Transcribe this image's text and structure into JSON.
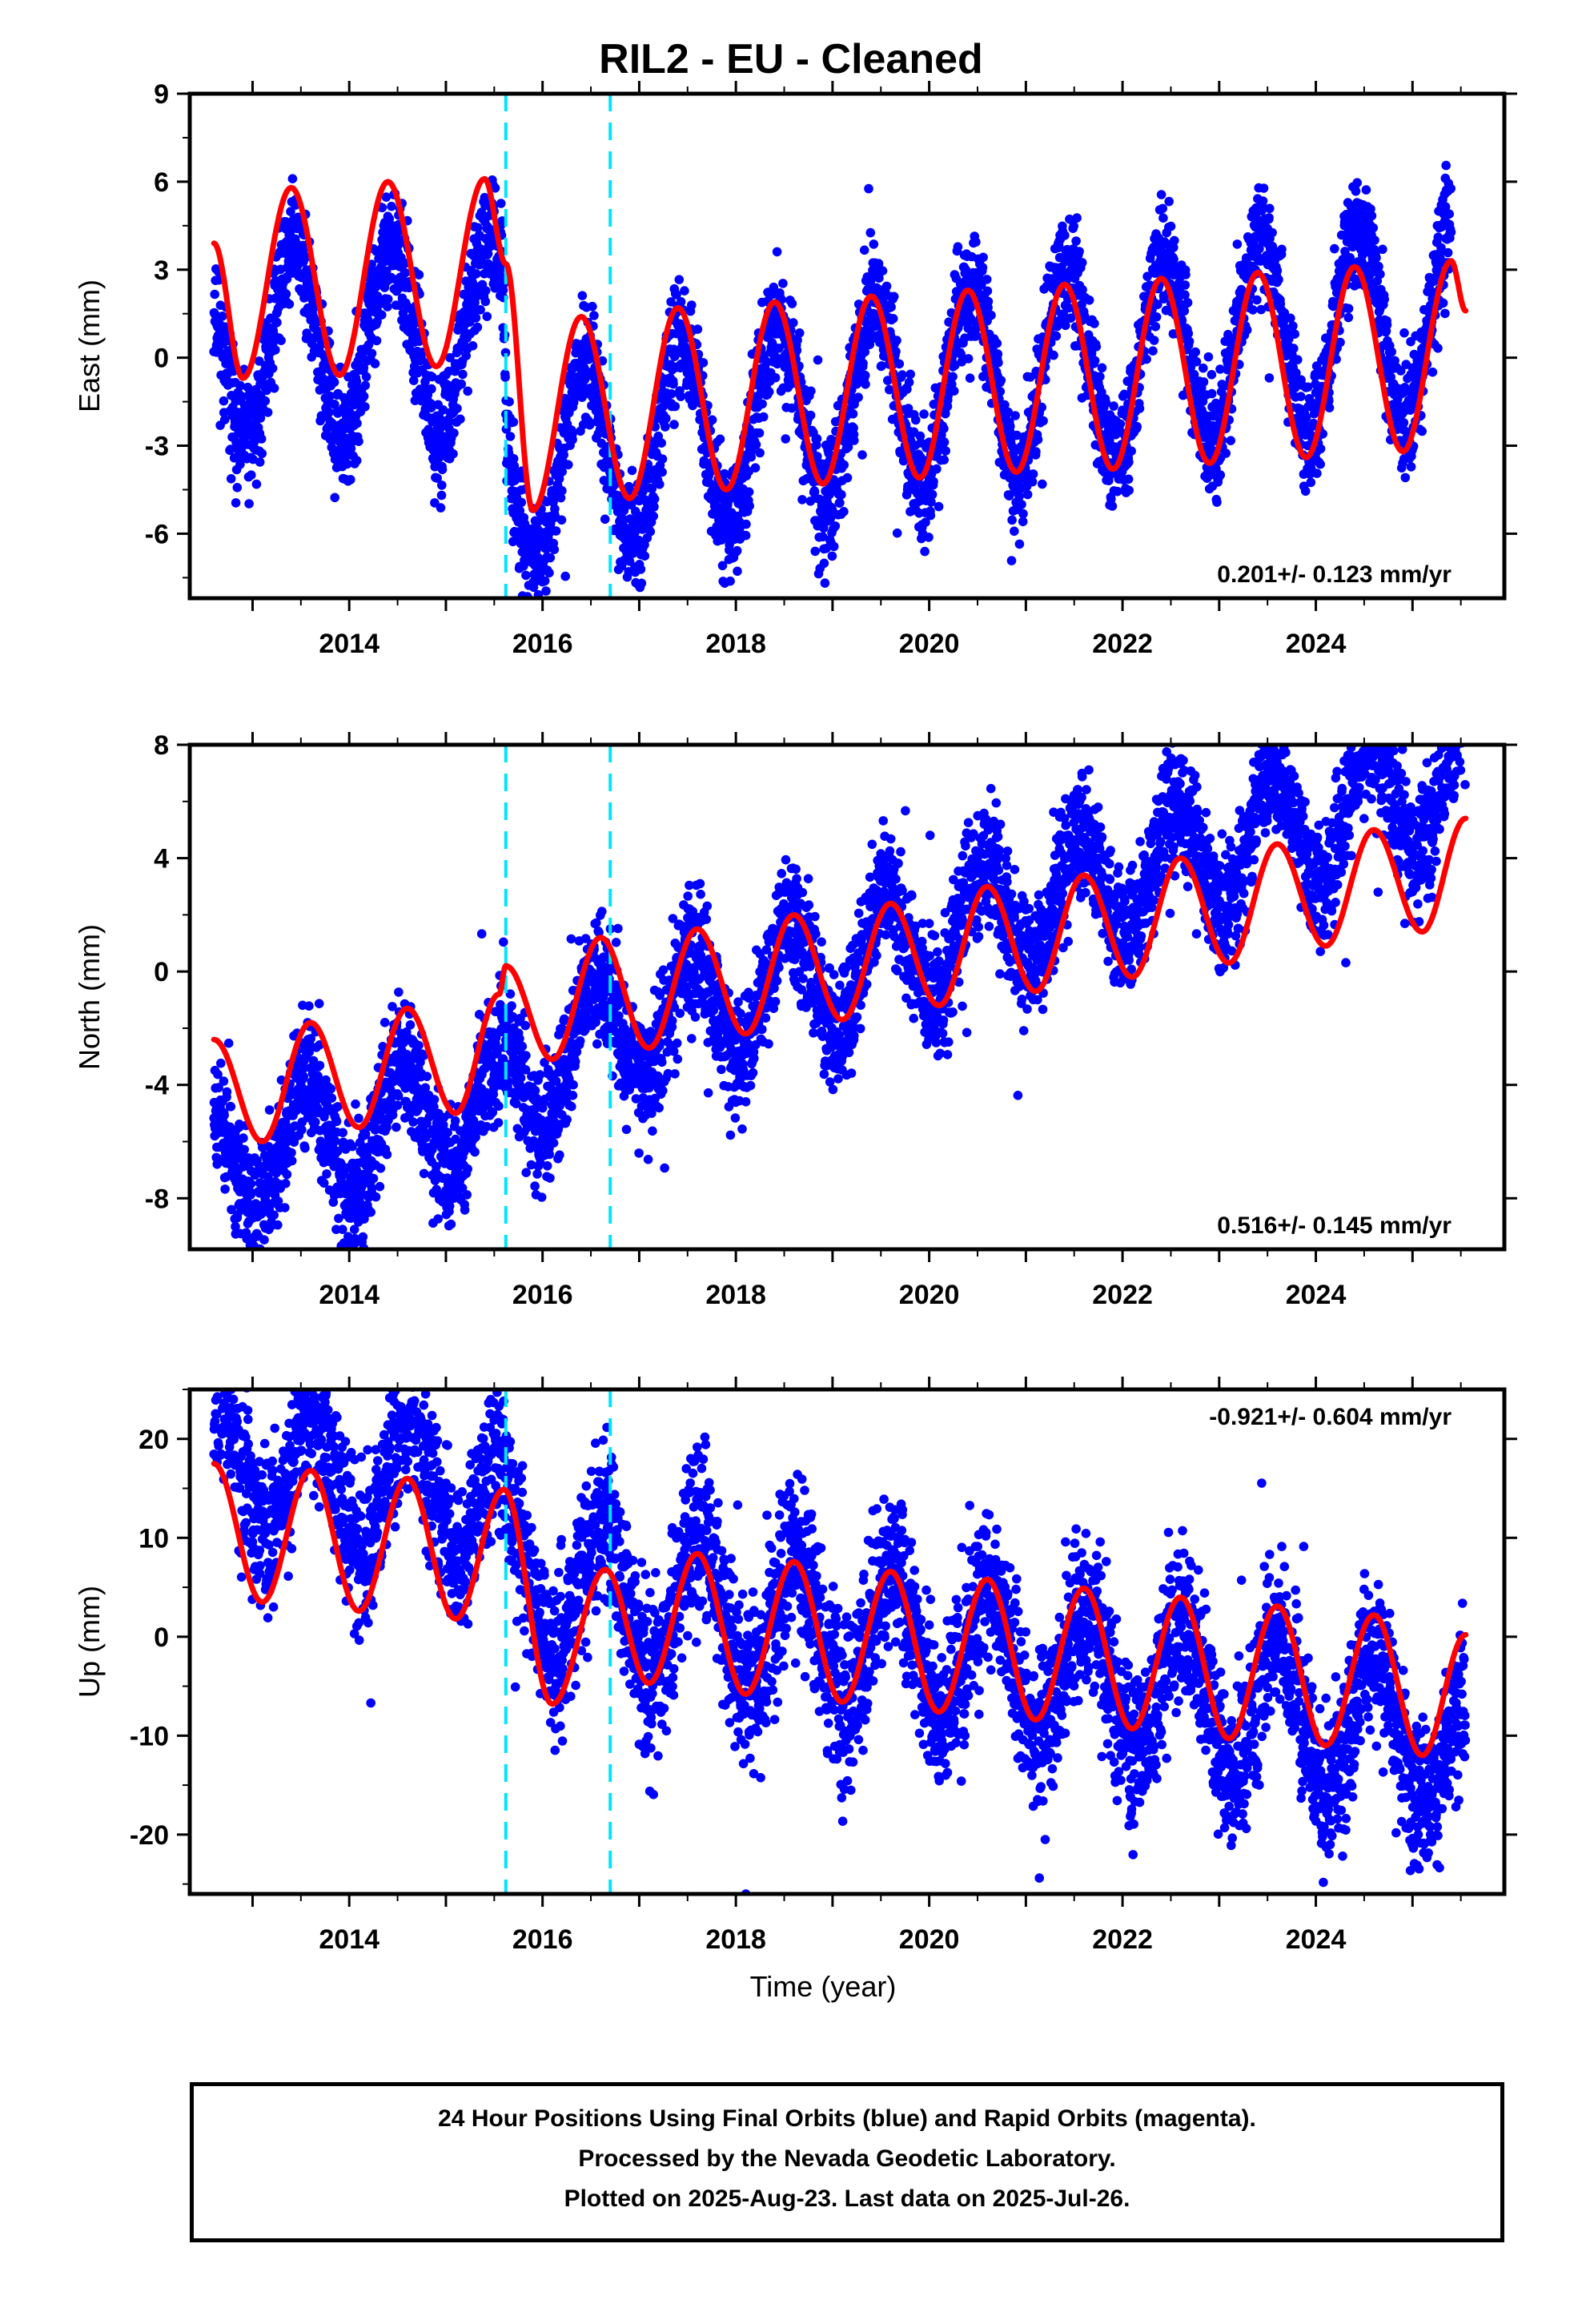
{
  "title": "RIL2  - EU - Cleaned",
  "colors": {
    "dots": "#0000ff",
    "fit": "#ff0000",
    "offsets": "#00e5ff"
  },
  "chart_data": [
    {
      "type": "scatter",
      "ylabel": "East (mm)",
      "xlabel": "",
      "xlim": [
        2012.35,
        2025.95
      ],
      "ylim": [
        -8.2,
        9.0
      ],
      "yticks": [
        -6,
        -3,
        0,
        3,
        6,
        9
      ],
      "xticks": [
        2014,
        2016,
        2018,
        2020,
        2022,
        2024
      ],
      "offsets": [
        2015.62,
        2016.7
      ],
      "rate_label": "0.201+/- 0.123 mm/yr",
      "rate_pos": "bottom-right",
      "model": {
        "rate": 0.201,
        "amp": 3.3,
        "peak_phase": 0.43,
        "noise": 1.0,
        "seed": 11,
        "anchors": [
          [
            2012.6,
            1.7
          ],
          [
            2015.6,
            1.4
          ],
          [
            2015.63,
            -3.3
          ],
          [
            2020.0,
            -1.2
          ],
          [
            2025.55,
            0.2
          ]
        ]
      },
      "series": [
        {
          "name": "Final Orbits",
          "values": [
            [
              2012.6,
              3.9
            ],
            [
              2012.9,
              -0.7
            ],
            [
              2013.4,
              5.8
            ],
            [
              2013.9,
              -0.6
            ],
            [
              2014.4,
              6.0
            ],
            [
              2014.9,
              -0.3
            ],
            [
              2015.4,
              6.1
            ],
            [
              2015.9,
              -5.2
            ],
            [
              2016.4,
              1.4
            ],
            [
              2016.9,
              -4.8
            ],
            [
              2017.4,
              1.7
            ],
            [
              2017.9,
              -4.5
            ],
            [
              2018.4,
              1.9
            ],
            [
              2018.9,
              -4.3
            ],
            [
              2019.4,
              2.1
            ],
            [
              2019.9,
              -4.1
            ],
            [
              2020.4,
              2.3
            ],
            [
              2020.9,
              -3.9
            ],
            [
              2021.4,
              2.5
            ],
            [
              2021.9,
              -3.8
            ],
            [
              2022.4,
              2.7
            ],
            [
              2022.9,
              -3.6
            ],
            [
              2023.4,
              2.9
            ],
            [
              2023.9,
              -3.4
            ],
            [
              2024.4,
              3.1
            ],
            [
              2024.9,
              -3.2
            ],
            [
              2025.4,
              3.3
            ]
          ]
        },
        {
          "name": "Fit",
          "values": [
            [
              2012.6,
              3.9
            ],
            [
              2012.9,
              -0.7
            ],
            [
              2013.4,
              5.8
            ],
            [
              2013.9,
              -0.6
            ],
            [
              2014.4,
              6.0
            ],
            [
              2014.9,
              -0.3
            ],
            [
              2015.4,
              6.1
            ],
            [
              2015.62,
              3.2
            ],
            [
              2015.9,
              -5.2
            ],
            [
              2016.4,
              1.4
            ],
            [
              2016.9,
              -4.8
            ],
            [
              2017.4,
              1.7
            ],
            [
              2017.9,
              -4.5
            ],
            [
              2018.4,
              1.9
            ],
            [
              2018.9,
              -4.3
            ],
            [
              2019.4,
              2.1
            ],
            [
              2019.9,
              -4.1
            ],
            [
              2020.4,
              2.3
            ],
            [
              2020.9,
              -3.9
            ],
            [
              2021.4,
              2.5
            ],
            [
              2021.9,
              -3.8
            ],
            [
              2022.4,
              2.7
            ],
            [
              2022.9,
              -3.6
            ],
            [
              2023.4,
              2.9
            ],
            [
              2023.9,
              -3.4
            ],
            [
              2024.4,
              3.1
            ],
            [
              2024.9,
              -3.2
            ],
            [
              2025.4,
              3.3
            ],
            [
              2025.55,
              1.6
            ]
          ]
        }
      ]
    },
    {
      "type": "scatter",
      "ylabel": "North (mm)",
      "xlabel": "",
      "xlim": [
        2012.35,
        2025.95
      ],
      "ylim": [
        -9.8,
        8.0
      ],
      "yticks": [
        -8,
        -4,
        0,
        4,
        8
      ],
      "xticks": [
        2014,
        2016,
        2018,
        2020,
        2022,
        2024
      ],
      "offsets": [
        2015.62,
        2016.7
      ],
      "rate_label": "0.516+/- 0.145 mm/yr",
      "rate_pos": "bottom-right",
      "model": {
        "rate": 0.516,
        "amp": 2.1,
        "peak_phase": 0.55,
        "noise": 1.1,
        "seed": 23,
        "anchors": [
          [
            2012.6,
            -3.3
          ],
          [
            2015.55,
            -2.9
          ],
          [
            2016.5,
            -0.9
          ],
          [
            2019.0,
            0.0
          ],
          [
            2022.0,
            1.8
          ],
          [
            2025.55,
            3.4
          ]
        ]
      },
      "series": [
        {
          "name": "Final Orbits",
          "values": [
            [
              2012.6,
              -2.4
            ],
            [
              2013.1,
              -6.0
            ],
            [
              2013.6,
              -1.8
            ],
            [
              2014.1,
              -5.5
            ],
            [
              2014.6,
              -1.3
            ],
            [
              2015.1,
              -5.0
            ],
            [
              2015.55,
              -0.8
            ],
            [
              2016.1,
              -3.1
            ],
            [
              2016.6,
              1.2
            ],
            [
              2017.1,
              -2.7
            ],
            [
              2017.6,
              1.5
            ],
            [
              2018.1,
              -2.2
            ],
            [
              2018.6,
              2.0
            ],
            [
              2019.1,
              -1.7
            ],
            [
              2019.6,
              2.4
            ],
            [
              2020.1,
              -1.2
            ],
            [
              2020.6,
              3.0
            ],
            [
              2021.1,
              -0.7
            ],
            [
              2021.6,
              3.4
            ],
            [
              2022.1,
              -0.2
            ],
            [
              2022.6,
              4.0
            ],
            [
              2023.1,
              0.3
            ],
            [
              2023.6,
              4.5
            ],
            [
              2024.1,
              0.9
            ],
            [
              2024.6,
              5.0
            ],
            [
              2025.1,
              1.4
            ],
            [
              2025.55,
              5.4
            ]
          ]
        },
        {
          "name": "Fit",
          "values": [
            [
              2012.6,
              -2.4
            ],
            [
              2013.1,
              -6.0
            ],
            [
              2013.6,
              -1.8
            ],
            [
              2014.1,
              -5.5
            ],
            [
              2014.6,
              -1.3
            ],
            [
              2015.1,
              -5.0
            ],
            [
              2015.55,
              -0.8
            ],
            [
              2015.62,
              0.2
            ],
            [
              2016.1,
              -3.1
            ],
            [
              2016.6,
              1.2
            ],
            [
              2017.1,
              -2.7
            ],
            [
              2017.6,
              1.5
            ],
            [
              2018.1,
              -2.2
            ],
            [
              2018.6,
              2.0
            ],
            [
              2019.1,
              -1.7
            ],
            [
              2019.6,
              2.4
            ],
            [
              2020.1,
              -1.2
            ],
            [
              2020.6,
              3.0
            ],
            [
              2021.1,
              -0.7
            ],
            [
              2021.6,
              3.4
            ],
            [
              2022.1,
              -0.2
            ],
            [
              2022.6,
              4.0
            ],
            [
              2023.1,
              0.3
            ],
            [
              2023.6,
              4.5
            ],
            [
              2024.1,
              0.9
            ],
            [
              2024.6,
              5.0
            ],
            [
              2025.1,
              1.4
            ],
            [
              2025.55,
              5.4
            ]
          ]
        }
      ]
    },
    {
      "type": "scatter",
      "ylabel": "Up (mm)",
      "xlabel": "Time (year)",
      "xlim": [
        2012.35,
        2025.95
      ],
      "ylim": [
        -26.0,
        25.0
      ],
      "yticks": [
        -20,
        -10,
        0,
        10,
        20
      ],
      "xticks": [
        2014,
        2016,
        2018,
        2020,
        2022,
        2024
      ],
      "offsets": [
        2015.62,
        2016.7
      ],
      "rate_label": "-0.921+/- 0.604 mm/yr",
      "rate_pos": "top-right",
      "model": {
        "rate": -0.921,
        "amp": 7.0,
        "peak_phase": 0.62,
        "noise": 4.0,
        "seed": 37,
        "anchors": [
          [
            2012.6,
            11.9
          ],
          [
            2015.6,
            11.0
          ],
          [
            2015.63,
            3.2
          ],
          [
            2016.7,
            2.2
          ],
          [
            2016.72,
            2.2
          ],
          [
            2020.0,
            0.0
          ],
          [
            2025.55,
            -5.0
          ]
        ]
      },
      "series": [
        {
          "name": "Final Orbits",
          "values": [
            [
              2012.6,
              17.5
            ],
            [
              2013.1,
              3.5
            ],
            [
              2013.6,
              16.8
            ],
            [
              2014.1,
              2.6
            ],
            [
              2014.6,
              16.0
            ],
            [
              2015.1,
              1.8
            ],
            [
              2015.6,
              14.9
            ],
            [
              2016.1,
              -6.8
            ],
            [
              2016.65,
              6.8
            ],
            [
              2017.1,
              -4.7
            ],
            [
              2017.6,
              8.4
            ],
            [
              2018.1,
              -5.8
            ],
            [
              2018.6,
              7.6
            ],
            [
              2019.1,
              -6.6
            ],
            [
              2019.6,
              6.6
            ],
            [
              2020.1,
              -7.6
            ],
            [
              2020.6,
              5.8
            ],
            [
              2021.1,
              -8.4
            ],
            [
              2021.6,
              4.9
            ],
            [
              2022.1,
              -9.3
            ],
            [
              2022.6,
              4.0
            ],
            [
              2023.1,
              -10.3
            ],
            [
              2023.6,
              3.1
            ],
            [
              2024.1,
              -11.0
            ],
            [
              2024.6,
              2.2
            ],
            [
              2025.1,
              -12.0
            ],
            [
              2025.55,
              0.2
            ]
          ]
        },
        {
          "name": "Fit",
          "values": [
            [
              2012.6,
              17.5
            ],
            [
              2013.1,
              3.5
            ],
            [
              2013.6,
              16.8
            ],
            [
              2014.1,
              2.6
            ],
            [
              2014.6,
              16.0
            ],
            [
              2015.1,
              1.8
            ],
            [
              2015.6,
              14.9
            ],
            [
              2016.1,
              -6.8
            ],
            [
              2016.65,
              6.8
            ],
            [
              2017.1,
              -4.7
            ],
            [
              2017.6,
              8.4
            ],
            [
              2018.1,
              -5.8
            ],
            [
              2018.6,
              7.6
            ],
            [
              2019.1,
              -6.6
            ],
            [
              2019.6,
              6.6
            ],
            [
              2020.1,
              -7.6
            ],
            [
              2020.6,
              5.8
            ],
            [
              2021.1,
              -8.4
            ],
            [
              2021.6,
              4.9
            ],
            [
              2022.1,
              -9.3
            ],
            [
              2022.6,
              4.0
            ],
            [
              2023.1,
              -10.3
            ],
            [
              2023.6,
              3.1
            ],
            [
              2024.1,
              -11.0
            ],
            [
              2024.6,
              2.2
            ],
            [
              2025.1,
              -12.0
            ],
            [
              2025.55,
              0.2
            ]
          ]
        }
      ]
    }
  ],
  "footer": {
    "line1": "24 Hour Positions Using Final Orbits (blue) and Rapid Orbits (magenta).",
    "line2": "Processed by the Nevada Geodetic Laboratory.",
    "line3": "Plotted on 2025-Aug-23. Last data on 2025-Jul-26."
  }
}
